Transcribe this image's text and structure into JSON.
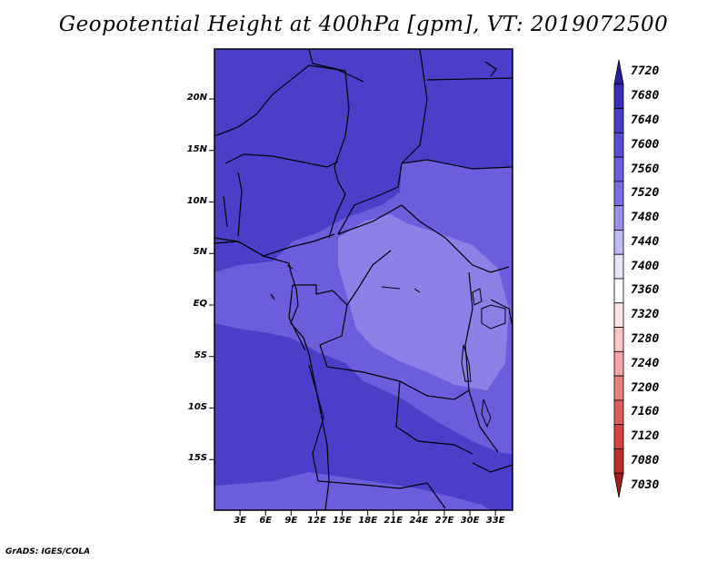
{
  "title": "Geopotential Height at 400hPa [gpm], VT: 2019072500",
  "map": {
    "lon_range": [
      0,
      35
    ],
    "lat_range": [
      -19.5,
      24.5
    ],
    "lat_ticks": [
      "20N",
      "15N",
      "10N",
      "5N",
      "EQ",
      "5S",
      "10S",
      "15S"
    ],
    "lon_ticks": [
      "3E",
      "6E",
      "9E",
      "12E",
      "15E",
      "18E",
      "21E",
      "24E",
      "27E",
      "30E",
      "33E"
    ],
    "field_colors": {
      "high": "#4a3fc8",
      "mid": "#6a5edc",
      "low": "#8a80e6"
    }
  },
  "colorbar": {
    "levels": [
      "7720",
      "7680",
      "7640",
      "7600",
      "7560",
      "7520",
      "7480",
      "7440",
      "7400",
      "7360",
      "7320",
      "7280",
      "7240",
      "7200",
      "7160",
      "7120",
      "7080",
      "7030"
    ],
    "colors": [
      "#2a1ea0",
      "#3a2fb8",
      "#4a3fc8",
      "#5a4fd4",
      "#6a5edc",
      "#7a6fe0",
      "#9a90ec",
      "#c0baf4",
      "#e6e4fb",
      "#ffffff",
      "#fde4e4",
      "#f8c6c6",
      "#f2a4a4",
      "#e88080",
      "#df5e5e",
      "#d64242",
      "#c22c2c",
      "#a81c1c"
    ]
  },
  "credit": "GrADS: IGES/COLA"
}
